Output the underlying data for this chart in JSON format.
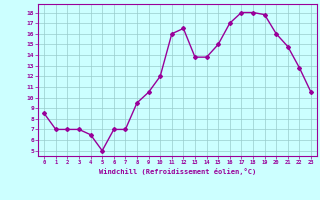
{
  "x": [
    0,
    1,
    2,
    3,
    4,
    5,
    6,
    7,
    8,
    9,
    10,
    11,
    12,
    13,
    14,
    15,
    16,
    17,
    18,
    19,
    20,
    21,
    22,
    23
  ],
  "y": [
    8.5,
    7.0,
    7.0,
    7.0,
    6.5,
    5.0,
    7.0,
    7.0,
    9.5,
    10.5,
    12.0,
    16.0,
    16.5,
    13.8,
    13.8,
    15.0,
    17.0,
    18.0,
    18.0,
    17.8,
    16.0,
    14.8,
    12.8,
    10.5
  ],
  "line_color": "#990099",
  "marker": "D",
  "marker_size": 2,
  "line_width": 1.0,
  "bg_color": "#ccffff",
  "grid_color": "#99cccc",
  "xlabel": "Windchill (Refroidissement éolien,°C)",
  "xlabel_color": "#990099",
  "tick_color": "#990099",
  "yticks": [
    5,
    6,
    7,
    8,
    9,
    10,
    11,
    12,
    13,
    14,
    15,
    16,
    17,
    18
  ],
  "xlim": [
    -0.5,
    23.5
  ],
  "ylim": [
    4.5,
    18.8
  ]
}
